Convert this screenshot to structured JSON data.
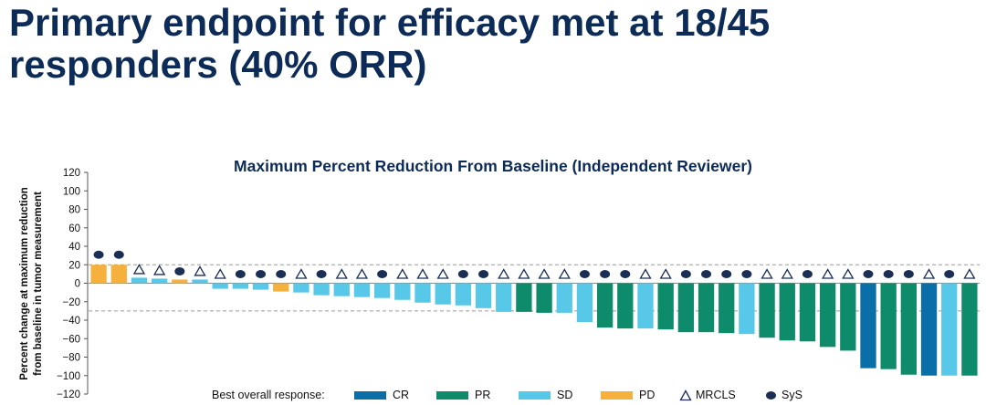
{
  "slide": {
    "title_line1": "Primary endpoint for efficacy met at 18/45",
    "title_line2": "responders (40% ORR)"
  },
  "chart_data": {
    "type": "bar",
    "title": "Maximum Percent Reduction From Baseline (Independent Reviewer)",
    "ylabel_line1": "Percent change at maximum reduction",
    "ylabel_line2": "from baseline in tumor measurement",
    "ylim": [
      -120,
      120
    ],
    "yticks": [
      120,
      100,
      80,
      60,
      40,
      20,
      0,
      -20,
      -40,
      -60,
      -80,
      -100,
      -120
    ],
    "reference_lines": [
      20,
      -30
    ],
    "colors": {
      "CR": "#0a6ea8",
      "PR": "#0d8b6a",
      "SD": "#58c8e8",
      "PD": "#f6b13d"
    },
    "bars": [
      {
        "value": 20,
        "response": "PD",
        "histology": "SyS"
      },
      {
        "value": 20,
        "response": "PD",
        "histology": "SyS"
      },
      {
        "value": 6,
        "response": "SD",
        "histology": "MRCLS"
      },
      {
        "value": 5,
        "response": "SD",
        "histology": "MRCLS"
      },
      {
        "value": 4,
        "response": "PD",
        "histology": "SyS"
      },
      {
        "value": 4,
        "response": "SD",
        "histology": "MRCLS"
      },
      {
        "value": -6,
        "response": "SD",
        "histology": "MRCLS"
      },
      {
        "value": -6,
        "response": "SD",
        "histology": "SyS"
      },
      {
        "value": -7,
        "response": "SD",
        "histology": "SyS"
      },
      {
        "value": -9,
        "response": "PD",
        "histology": "SyS"
      },
      {
        "value": -10,
        "response": "SD",
        "histology": "MRCLS"
      },
      {
        "value": -13,
        "response": "SD",
        "histology": "SyS"
      },
      {
        "value": -14,
        "response": "SD",
        "histology": "MRCLS"
      },
      {
        "value": -15,
        "response": "SD",
        "histology": "MRCLS"
      },
      {
        "value": -16,
        "response": "SD",
        "histology": "SyS"
      },
      {
        "value": -18,
        "response": "SD",
        "histology": "MRCLS"
      },
      {
        "value": -21,
        "response": "SD",
        "histology": "MRCLS"
      },
      {
        "value": -23,
        "response": "SD",
        "histology": "MRCLS"
      },
      {
        "value": -24,
        "response": "SD",
        "histology": "SyS"
      },
      {
        "value": -27,
        "response": "SD",
        "histology": "SyS"
      },
      {
        "value": -31,
        "response": "SD",
        "histology": "MRCLS"
      },
      {
        "value": -31,
        "response": "PR",
        "histology": "MRCLS"
      },
      {
        "value": -32,
        "response": "PR",
        "histology": "MRCLS"
      },
      {
        "value": -32,
        "response": "SD",
        "histology": "MRCLS"
      },
      {
        "value": -42,
        "response": "SD",
        "histology": "SyS"
      },
      {
        "value": -48,
        "response": "PR",
        "histology": "SyS"
      },
      {
        "value": -49,
        "response": "PR",
        "histology": "SyS"
      },
      {
        "value": -49,
        "response": "SD",
        "histology": "MRCLS"
      },
      {
        "value": -50,
        "response": "PR",
        "histology": "MRCLS"
      },
      {
        "value": -53,
        "response": "PR",
        "histology": "SyS"
      },
      {
        "value": -53,
        "response": "PR",
        "histology": "SyS"
      },
      {
        "value": -54,
        "response": "PR",
        "histology": "SyS"
      },
      {
        "value": -55,
        "response": "SD",
        "histology": "SyS"
      },
      {
        "value": -59,
        "response": "PR",
        "histology": "MRCLS"
      },
      {
        "value": -62,
        "response": "PR",
        "histology": "MRCLS"
      },
      {
        "value": -63,
        "response": "PR",
        "histology": "SyS"
      },
      {
        "value": -69,
        "response": "PR",
        "histology": "MRCLS"
      },
      {
        "value": -73,
        "response": "PR",
        "histology": "MRCLS"
      },
      {
        "value": -92,
        "response": "CR",
        "histology": "SyS"
      },
      {
        "value": -93,
        "response": "PR",
        "histology": "SyS"
      },
      {
        "value": -99,
        "response": "PR",
        "histology": "SyS"
      },
      {
        "value": -100,
        "response": "CR",
        "histology": "MRCLS"
      },
      {
        "value": -100,
        "response": "SD",
        "histology": "SyS"
      },
      {
        "value": -100,
        "response": "PR",
        "histology": "MRCLS"
      }
    ],
    "legend": {
      "label": "Best overall response:",
      "items": [
        {
          "key": "CR",
          "label": "CR"
        },
        {
          "key": "PR",
          "label": "PR"
        },
        {
          "key": "SD",
          "label": "SD"
        },
        {
          "key": "PD",
          "label": "PD"
        }
      ],
      "mrcls_label": "MRCLS",
      "sys_label": "SyS"
    }
  }
}
